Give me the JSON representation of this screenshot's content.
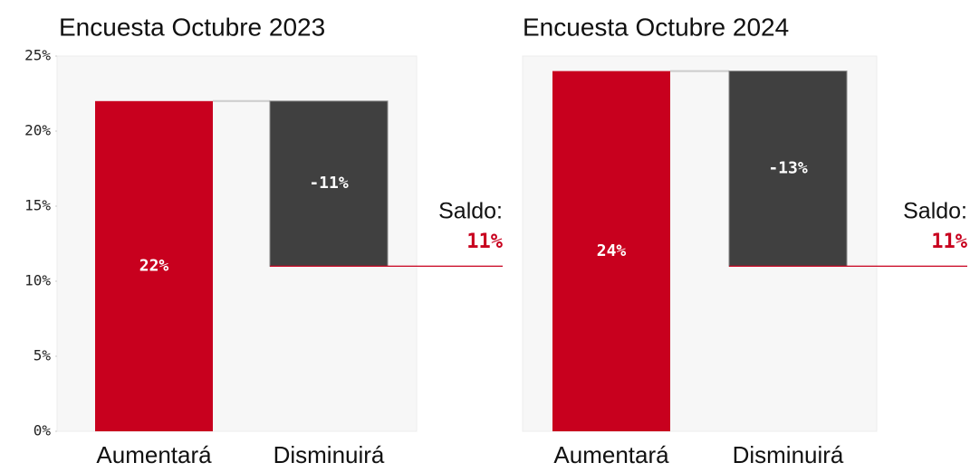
{
  "chart_data": [
    {
      "type": "waterfall",
      "title": "Encuesta Octubre 2023",
      "categories": [
        "Aumentará",
        "Disminuirá"
      ],
      "values": [
        22,
        -11
      ],
      "value_labels": [
        "22%",
        "-11%"
      ],
      "colors": [
        "#c8001e",
        "#404040"
      ],
      "ylim": [
        0,
        25
      ],
      "yticks": [
        {
          "value": 0,
          "label": "0%"
        },
        {
          "value": 5,
          "label": "5%"
        },
        {
          "value": 10,
          "label": "10%"
        },
        {
          "value": 15,
          "label": "15%"
        },
        {
          "value": 20,
          "label": "20%"
        },
        {
          "value": 25,
          "label": "25%"
        }
      ],
      "saldo_text": "Saldo:",
      "saldo": 11,
      "saldo_value_label": "11%"
    },
    {
      "type": "waterfall",
      "title": "Encuesta Octubre 2024",
      "categories": [
        "Aumentará",
        "Disminuirá"
      ],
      "values": [
        24,
        -13
      ],
      "value_labels": [
        "24%",
        "-13%"
      ],
      "colors": [
        "#c8001e",
        "#404040"
      ],
      "ylim": [
        0,
        25
      ],
      "saldo_text": "Saldo:",
      "saldo": 11,
      "saldo_value_label": "11%"
    }
  ]
}
